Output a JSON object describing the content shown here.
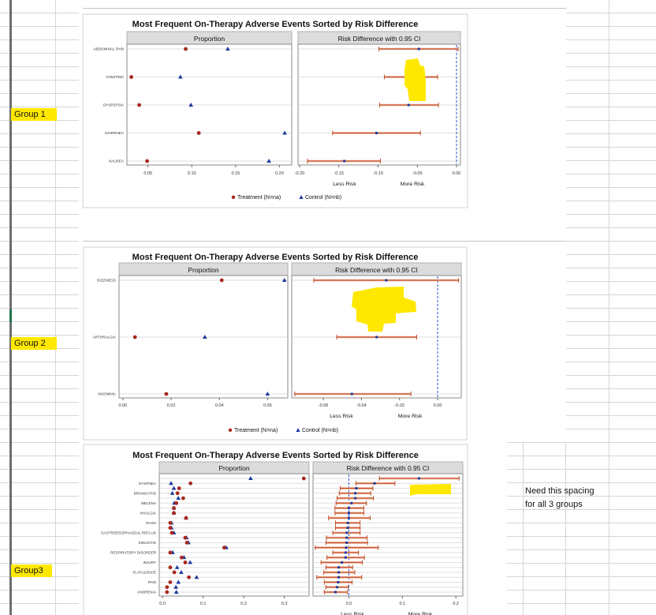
{
  "sheet": {
    "group_labels": [
      "Group 1",
      "Group 2",
      "Group3"
    ],
    "note_lines": [
      "Need this spacing",
      "for all 3 groups"
    ],
    "highlight_color": "#ffe800"
  },
  "colors": {
    "treatment": "#a8281c",
    "control": "#1c3a9c",
    "ci_bar": "#c0502a",
    "reference_line": "#2255d6",
    "panel_header": "#dcdcdc"
  },
  "chart_data": [
    {
      "type": "scatter",
      "title": "Most Frequent On-Therapy Adverse Events Sorted by Risk Difference",
      "panels": [
        "Proportion",
        "Risk Difference with 0.95 CI"
      ],
      "risk_labels": [
        "Less Risk",
        "More Risk"
      ],
      "legend": [
        "Treatment (N=na)",
        "Control (N=nb)"
      ],
      "legend_position": "bottom",
      "proportion_axis": {
        "range": [
          0.026,
          0.214
        ],
        "ticks": [
          "0.05",
          "0.10",
          "0.15",
          "0.20"
        ]
      },
      "risk_axis": {
        "range": [
          -0.202,
          0.005
        ],
        "ticks": [
          "-0.20",
          "-0.15",
          "-0.10",
          "-0.05",
          "0.00"
        ],
        "reference": 0
      },
      "rows": [
        {
          "label": "ABDOMINAL PAIN",
          "treatment": 0.093,
          "control": 0.141,
          "rd": -0.048,
          "lo": -0.099,
          "hi": 0.002
        },
        {
          "label": "VOMITING",
          "treatment": 0.031,
          "control": 0.087,
          "rd": -0.058,
          "lo": -0.092,
          "hi": -0.024
        },
        {
          "label": "DYSPEPSIA",
          "treatment": 0.04,
          "control": 0.099,
          "rd": -0.061,
          "lo": -0.098,
          "hi": -0.023
        },
        {
          "label": "DIARRHEA",
          "treatment": 0.108,
          "control": 0.206,
          "rd": -0.102,
          "lo": -0.158,
          "hi": -0.046
        },
        {
          "label": "NAUSEA",
          "treatment": 0.049,
          "control": 0.188,
          "rd": -0.143,
          "lo": -0.19,
          "hi": -0.097
        }
      ]
    },
    {
      "type": "scatter",
      "title": "Most Frequent On-Therapy Adverse Events Sorted by Risk Difference",
      "panels": [
        "Proportion",
        "Risk Difference with 0.95 CI"
      ],
      "risk_labels": [
        "Less Risk",
        "More Risk"
      ],
      "legend": [
        "Treatment (N=na)",
        "Control (N=nb)"
      ],
      "legend_position": "bottom",
      "proportion_axis": {
        "range": [
          -0.0016,
          0.0684
        ],
        "ticks": [
          "0.00",
          "0.02",
          "0.04",
          "0.06"
        ]
      },
      "risk_axis": {
        "range": [
          -0.0766,
          0.0124
        ],
        "ticks": [
          "-0.06",
          "-0.04",
          "-0.02",
          "0.00"
        ],
        "reference": 0
      },
      "rows": [
        {
          "label": "DIZZINESS",
          "treatment": 0.041,
          "control": 0.067,
          "rd": -0.027,
          "lo": -0.065,
          "hi": 0.011
        },
        {
          "label": "ARTHRALGIA",
          "treatment": 0.005,
          "control": 0.034,
          "rd": -0.032,
          "lo": -0.053,
          "hi": -0.011
        },
        {
          "label": "INSOMNIA",
          "treatment": 0.018,
          "control": 0.06,
          "rd": -0.045,
          "lo": -0.075,
          "hi": -0.014
        }
      ]
    },
    {
      "type": "scatter",
      "title": "Most Frequent On-Therapy Adverse Events Sorted by Risk Difference",
      "panels": [
        "Proportion",
        "Risk Difference with 0.95 CI"
      ],
      "risk_labels": [
        "Less Risk",
        "More Risk"
      ],
      "legend": [],
      "proportion_axis": {
        "range": [
          -0.008,
          0.361
        ],
        "ticks": [
          "0.0",
          "0.1",
          "0.2",
          "0.3"
        ]
      },
      "risk_axis": {
        "range": [
          -0.067,
          0.213
        ],
        "ticks": [
          "0.0",
          "0.1",
          "0.2"
        ],
        "reference": 0
      },
      "rows": [
        {
          "label": "",
          "treatment": 0.348,
          "control": 0.217,
          "rd": 0.131,
          "lo": 0.057,
          "hi": 0.206
        },
        {
          "label": "DYSPNEA",
          "treatment": 0.069,
          "control": 0.021,
          "rd": 0.048,
          "lo": 0.013,
          "hi": 0.086
        },
        {
          "label": "",
          "treatment": 0.041,
          "control": 0.028,
          "rd": 0.014,
          "lo": -0.016,
          "hi": 0.045
        },
        {
          "label": "BRONCHITIS",
          "treatment": 0.037,
          "control": 0.024,
          "rd": 0.012,
          "lo": -0.018,
          "hi": 0.041
        },
        {
          "label": "",
          "treatment": 0.051,
          "control": 0.039,
          "rd": 0.012,
          "lo": -0.022,
          "hi": 0.046
        },
        {
          "label": "MELENA",
          "treatment": 0.034,
          "control": 0.029,
          "rd": 0.005,
          "lo": -0.024,
          "hi": 0.033
        },
        {
          "label": "",
          "treatment": 0.028,
          "control": 0.028,
          "rd": 0.0,
          "lo": -0.026,
          "hi": 0.028
        },
        {
          "label": "MYALGIA",
          "treatment": 0.028,
          "control": 0.028,
          "rd": 0.0,
          "lo": -0.026,
          "hi": 0.028
        },
        {
          "label": "",
          "treatment": 0.058,
          "control": 0.058,
          "rd": 0.0,
          "lo": -0.038,
          "hi": 0.04
        },
        {
          "label": "RASH",
          "treatment": 0.019,
          "control": 0.022,
          "rd": -0.002,
          "lo": -0.025,
          "hi": 0.021
        },
        {
          "label": "",
          "treatment": 0.019,
          "control": 0.022,
          "rd": -0.002,
          "lo": -0.025,
          "hi": 0.021
        },
        {
          "label": "GASTROESOPHAGEAL REFLUX",
          "treatment": 0.023,
          "control": 0.028,
          "rd": -0.004,
          "lo": -0.03,
          "hi": 0.021
        },
        {
          "label": "",
          "treatment": 0.056,
          "control": 0.059,
          "rd": -0.004,
          "lo": -0.042,
          "hi": 0.034
        },
        {
          "label": "SINUSITIS",
          "treatment": 0.06,
          "control": 0.064,
          "rd": -0.004,
          "lo": -0.043,
          "hi": 0.035
        },
        {
          "label": "",
          "treatment": 0.152,
          "control": 0.157,
          "rd": -0.005,
          "lo": -0.063,
          "hi": 0.055
        },
        {
          "label": "RESPIRATORY DISORDER",
          "treatment": 0.019,
          "control": 0.025,
          "rd": -0.006,
          "lo": -0.03,
          "hi": 0.018
        },
        {
          "label": "",
          "treatment": 0.047,
          "control": 0.053,
          "rd": -0.006,
          "lo": -0.041,
          "hi": 0.029
        },
        {
          "label": "INJURY",
          "treatment": 0.056,
          "control": 0.068,
          "rd": -0.013,
          "lo": -0.052,
          "hi": 0.025
        },
        {
          "label": "",
          "treatment": 0.019,
          "control": 0.036,
          "rd": -0.019,
          "lo": -0.043,
          "hi": 0.007
        },
        {
          "label": "FLATULENCE",
          "treatment": 0.029,
          "control": 0.046,
          "rd": -0.019,
          "lo": -0.047,
          "hi": 0.011
        },
        {
          "label": "",
          "treatment": 0.065,
          "control": 0.084,
          "rd": -0.019,
          "lo": -0.06,
          "hi": 0.024
        },
        {
          "label": "PAIN",
          "treatment": 0.019,
          "control": 0.039,
          "rd": -0.02,
          "lo": -0.046,
          "hi": 0.006
        },
        {
          "label": "",
          "treatment": 0.011,
          "control": 0.033,
          "rd": -0.022,
          "lo": -0.043,
          "hi": -0.001
        },
        {
          "label": "ANOREXIA",
          "treatment": 0.011,
          "control": 0.034,
          "rd": -0.025,
          "lo": -0.046,
          "hi": -0.003
        }
      ]
    }
  ]
}
